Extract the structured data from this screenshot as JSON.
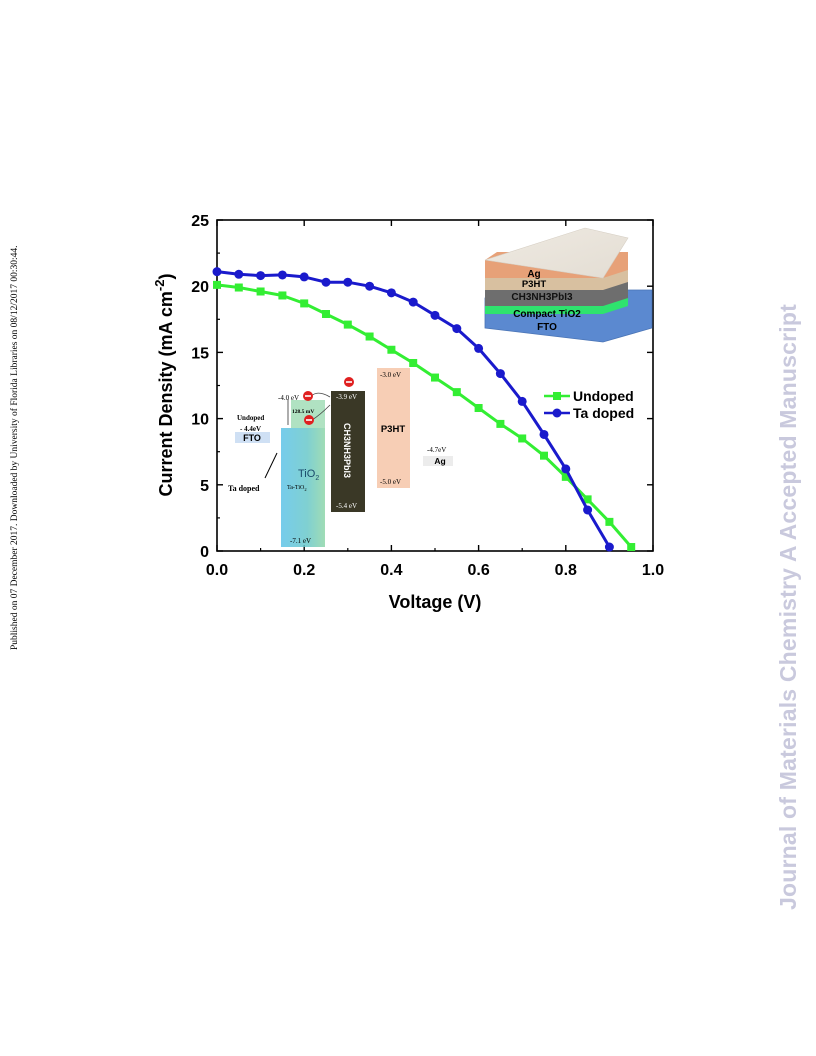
{
  "side_note": "Published on 07 December 2017. Downloaded by University of Florida Libraries on 08/12/2017 00:30:44.",
  "watermark": "Journal of Materials Chemistry A Accepted Manuscript",
  "chart_data": {
    "type": "line",
    "xlabel": "Voltage (V)",
    "ylabel_main": "Current Density (mA cm",
    "ylabel_sup": "-2",
    "ylabel_close": ")",
    "xlim": [
      0.0,
      1.0
    ],
    "ylim": [
      0,
      25
    ],
    "x_ticks": [
      "0.0",
      "0.2",
      "0.4",
      "0.6",
      "0.8",
      "1.0"
    ],
    "y_ticks": [
      "0",
      "5",
      "10",
      "15",
      "20",
      "25"
    ],
    "legend_position": "right",
    "series": [
      {
        "name": "Undoped",
        "color": "#33ee33",
        "marker": "square",
        "x": [
          0.0,
          0.05,
          0.1,
          0.15,
          0.2,
          0.25,
          0.3,
          0.35,
          0.4,
          0.45,
          0.5,
          0.55,
          0.6,
          0.65,
          0.7,
          0.75,
          0.8,
          0.85,
          0.9,
          0.95
        ],
        "y": [
          20.1,
          19.9,
          19.6,
          19.3,
          18.7,
          17.9,
          17.1,
          16.2,
          15.2,
          14.2,
          13.1,
          12.0,
          10.8,
          9.6,
          8.5,
          7.2,
          5.6,
          3.9,
          2.2,
          0.3
        ]
      },
      {
        "name": "Ta doped",
        "color": "#1a1acc",
        "marker": "circle",
        "x": [
          0.0,
          0.05,
          0.1,
          0.15,
          0.2,
          0.25,
          0.3,
          0.35,
          0.4,
          0.45,
          0.5,
          0.55,
          0.6,
          0.65,
          0.7,
          0.75,
          0.8,
          0.85,
          0.9
        ],
        "y": [
          21.1,
          20.9,
          20.8,
          20.85,
          20.7,
          20.3,
          20.3,
          20.0,
          19.5,
          18.8,
          17.8,
          16.8,
          15.3,
          13.4,
          11.3,
          8.8,
          6.2,
          3.1,
          0.3
        ]
      }
    ],
    "inset_device_stack": {
      "layers": [
        "Ag",
        "P3HT",
        "CH3NH3PbI3",
        "Compact TiO2",
        "FTO"
      ]
    },
    "inset_band_diagram": {
      "labels": {
        "tio2_cb": "-4.0 eV",
        "offset": "128.5 mV",
        "undoped": "Undoped",
        "fto_wf": "- 4.4eV",
        "fto": "FTO",
        "ta_doped": "Ta doped",
        "tio2": "TiO",
        "tio2_sub": "2",
        "ta_tio2": "Ta-TiO",
        "ta_tio2_sub": "2",
        "tio2_vb": "-7.1 eV",
        "pero_cb": "-3.9 eV",
        "pero_name": "CH3NH3PbI3",
        "pero_vb": "-5.4 eV",
        "p3ht_lumo": "-3.0 eV",
        "p3ht": "P3HT",
        "p3ht_homo": "-5.0 eV",
        "ag_wf": "-4.7eV",
        "ag": "Ag"
      }
    }
  }
}
